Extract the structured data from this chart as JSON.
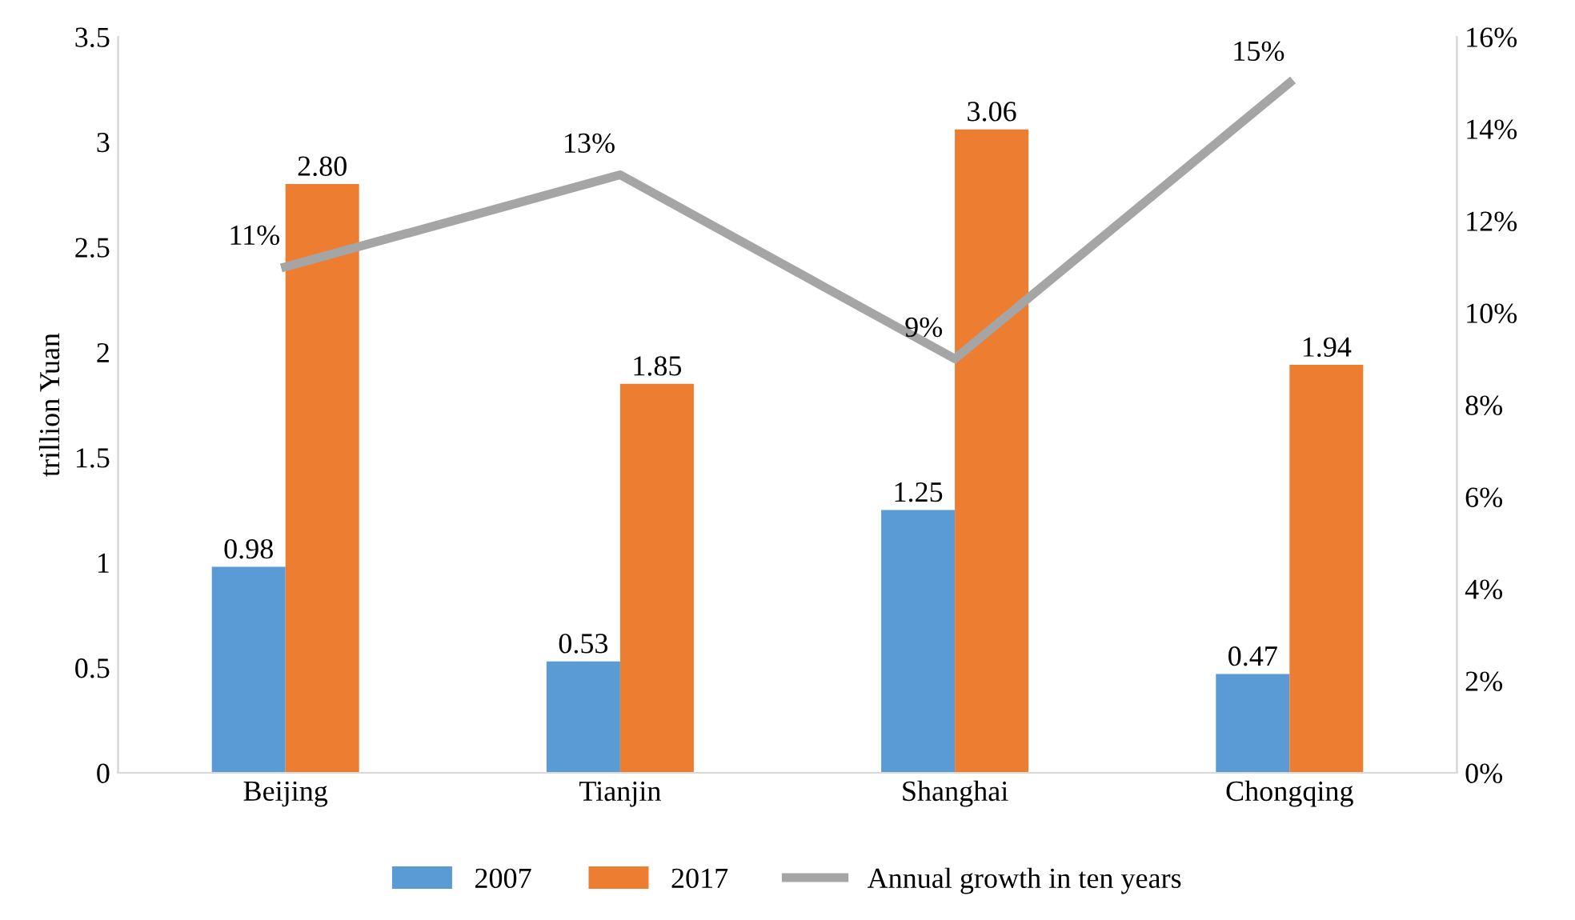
{
  "chart_data": {
    "type": "bar",
    "ylabel": "trillion Yuan",
    "categories": [
      "Beijing",
      "Tianjin",
      "Shanghai",
      "Chongqing"
    ],
    "series": [
      {
        "name": "2007",
        "color": "#5b9bd5",
        "values": [
          0.98,
          0.53,
          1.25,
          0.47
        ],
        "value_labels": [
          "0.98",
          "0.53",
          "1.25",
          "0.47"
        ]
      },
      {
        "name": "2017",
        "color": "#ed7d31",
        "values": [
          2.8,
          1.85,
          3.06,
          1.94
        ],
        "value_labels": [
          "2.80",
          "1.85",
          "3.06",
          "1.94"
        ]
      },
      {
        "name": "Annual growth in ten years",
        "type": "line",
        "axis": "y2",
        "color": "#a5a5a5",
        "values": [
          11,
          13,
          9,
          15
        ],
        "value_labels": [
          "11%",
          "13%",
          "9%",
          "15%"
        ]
      }
    ],
    "ylim": [
      0,
      3.5
    ],
    "yticks": [
      0,
      0.5,
      1,
      1.5,
      2,
      2.5,
      3,
      3.5
    ],
    "y2lim": [
      0,
      16
    ],
    "y2ticks": [
      {
        "value": 0,
        "label": "0%"
      },
      {
        "value": 2,
        "label": "2%"
      },
      {
        "value": 4,
        "label": "4%"
      },
      {
        "value": 6,
        "label": "6%"
      },
      {
        "value": 8,
        "label": "8%"
      },
      {
        "value": 10,
        "label": "10%"
      },
      {
        "value": 12,
        "label": "12%"
      },
      {
        "value": 14,
        "label": "14%"
      },
      {
        "value": 16,
        "label": "16%"
      }
    ],
    "legend": "bottom",
    "marker": "none",
    "line_style": "solid"
  }
}
